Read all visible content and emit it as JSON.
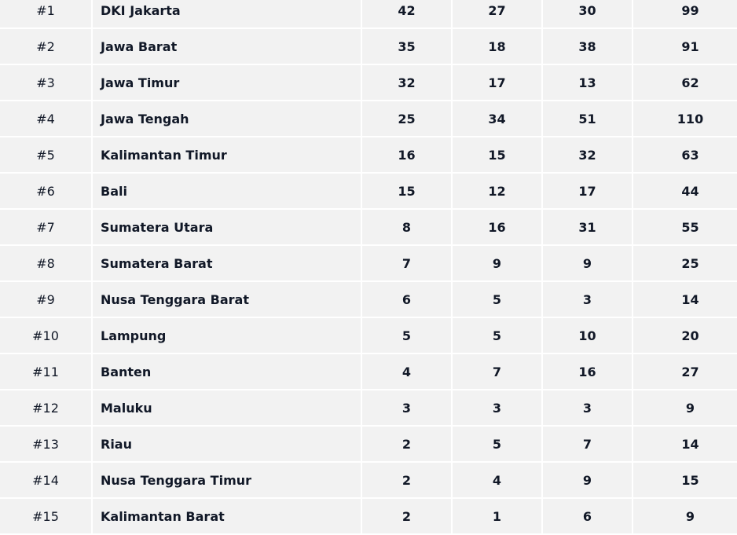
{
  "rows": [
    {
      "rank": "#1",
      "name": "DKI Jakarta",
      "c1": "42",
      "c2": "27",
      "c3": "30",
      "total": "99"
    },
    {
      "rank": "#2",
      "name": "Jawa Barat",
      "c1": "35",
      "c2": "18",
      "c3": "38",
      "total": "91"
    },
    {
      "rank": "#3",
      "name": "Jawa Timur",
      "c1": "32",
      "c2": "17",
      "c3": "13",
      "total": "62"
    },
    {
      "rank": "#4",
      "name": "Jawa Tengah",
      "c1": "25",
      "c2": "34",
      "c3": "51",
      "total": "110"
    },
    {
      "rank": "#5",
      "name": "Kalimantan Timur",
      "c1": "16",
      "c2": "15",
      "c3": "32",
      "total": "63"
    },
    {
      "rank": "#6",
      "name": "Bali",
      "c1": "15",
      "c2": "12",
      "c3": "17",
      "total": "44"
    },
    {
      "rank": "#7",
      "name": "Sumatera Utara",
      "c1": "8",
      "c2": "16",
      "c3": "31",
      "total": "55"
    },
    {
      "rank": "#8",
      "name": "Sumatera Barat",
      "c1": "7",
      "c2": "9",
      "c3": "9",
      "total": "25"
    },
    {
      "rank": "#9",
      "name": "Nusa Tenggara Barat",
      "c1": "6",
      "c2": "5",
      "c3": "3",
      "total": "14"
    },
    {
      "rank": "#10",
      "name": "Lampung",
      "c1": "5",
      "c2": "5",
      "c3": "10",
      "total": "20"
    },
    {
      "rank": "#11",
      "name": "Banten",
      "c1": "4",
      "c2": "7",
      "c3": "16",
      "total": "27"
    },
    {
      "rank": "#12",
      "name": "Maluku",
      "c1": "3",
      "c2": "3",
      "c3": "3",
      "total": "9"
    },
    {
      "rank": "#13",
      "name": "Riau",
      "c1": "2",
      "c2": "5",
      "c3": "7",
      "total": "14"
    },
    {
      "rank": "#14",
      "name": "Nusa Tenggara Timur",
      "c1": "2",
      "c2": "4",
      "c3": "9",
      "total": "15"
    },
    {
      "rank": "#15",
      "name": "Kalimantan Barat",
      "c1": "2",
      "c2": "1",
      "c3": "6",
      "total": "9"
    }
  ]
}
